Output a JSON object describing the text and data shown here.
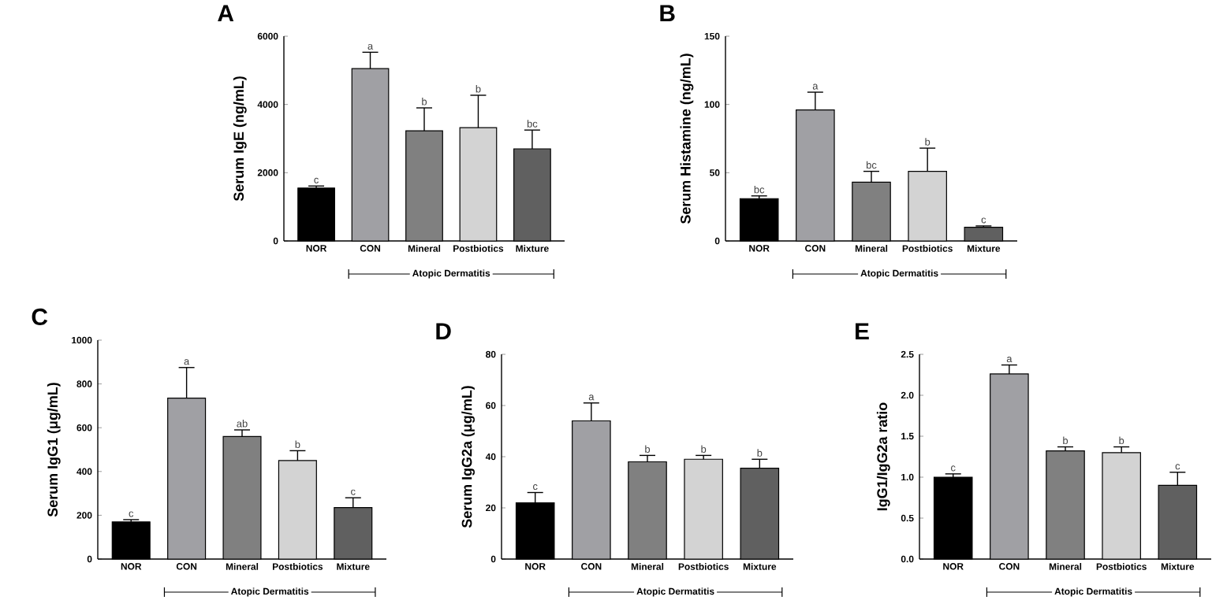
{
  "chart_data": [
    {
      "type": "bar",
      "title": "A",
      "ylabel": "Serum IgE (ng/mL)",
      "categories": [
        "NOR",
        "CON",
        "Mineral",
        "Postbiotics",
        "Mixture"
      ],
      "values": [
        1550,
        5050,
        3230,
        3320,
        2700
      ],
      "errors": [
        [
          1550,
          1610
        ],
        [
          5050,
          5530
        ],
        [
          3230,
          3900
        ],
        [
          3320,
          4270
        ],
        [
          2700,
          3250
        ]
      ],
      "colors": [
        "#000000",
        "#a0a0a4",
        "#808080",
        "#d3d3d3",
        "#606060"
      ],
      "ylim": [
        0,
        6000
      ],
      "yticks": [
        0,
        2000,
        4000,
        6000
      ],
      "grid": false,
      "annotations": [
        {
          "text": "c",
          "x": "NOR",
          "y": 1610
        },
        {
          "text": "a",
          "x": "CON",
          "y": 5530
        },
        {
          "text": "b",
          "x": "Mineral",
          "y": 3900
        },
        {
          "text": "b",
          "x": "Postbiotics",
          "y": 4270
        },
        {
          "text": "bc",
          "x": "Mixture",
          "y": 3250
        },
        "Atopic Dermatitis"
      ]
    },
    {
      "type": "bar",
      "title": "B",
      "ylabel": "Serum Histamine (ng/mL)",
      "categories": [
        "NOR",
        "CON",
        "Mineral",
        "Postbiotics",
        "Mixture"
      ],
      "values": [
        31,
        96,
        43,
        51,
        10
      ],
      "errors": [
        [
          31,
          33
        ],
        [
          96,
          109
        ],
        [
          43,
          51
        ],
        [
          51,
          68
        ],
        [
          10,
          11
        ]
      ],
      "colors": [
        "#000000",
        "#a0a0a4",
        "#808080",
        "#d3d3d3",
        "#606060"
      ],
      "ylim": [
        0,
        150
      ],
      "yticks": [
        0,
        50,
        100,
        150
      ],
      "grid": false,
      "annotations": [
        {
          "text": "bc",
          "x": "NOR",
          "y": 33
        },
        {
          "text": "a",
          "x": "CON",
          "y": 109
        },
        {
          "text": "bc",
          "x": "Mineral",
          "y": 51
        },
        {
          "text": "b",
          "x": "Postbiotics",
          "y": 68
        },
        {
          "text": "c",
          "x": "Mixture",
          "y": 11
        },
        "Atopic Dermatitis"
      ]
    },
    {
      "type": "bar",
      "title": "C",
      "ylabel": "Serum IgG1 (μg/mL)",
      "categories": [
        "NOR",
        "CON",
        "Mineral",
        "Postbiotics",
        "Mixture"
      ],
      "values": [
        170,
        735,
        560,
        450,
        235
      ],
      "errors": [
        [
          170,
          180
        ],
        [
          735,
          875
        ],
        [
          560,
          590
        ],
        [
          450,
          495
        ],
        [
          235,
          280
        ]
      ],
      "colors": [
        "#000000",
        "#a0a0a4",
        "#808080",
        "#d3d3d3",
        "#606060"
      ],
      "ylim": [
        0,
        1000
      ],
      "yticks": [
        0,
        200,
        400,
        600,
        800,
        1000
      ],
      "grid": false,
      "annotations": [
        {
          "text": "c",
          "x": "NOR",
          "y": 180
        },
        {
          "text": "a",
          "x": "CON",
          "y": 875
        },
        {
          "text": "ab",
          "x": "Mineral",
          "y": 590
        },
        {
          "text": "b",
          "x": "Postbiotics",
          "y": 495
        },
        {
          "text": "c",
          "x": "Mixture",
          "y": 280
        },
        "Atopic Dermatitis"
      ]
    },
    {
      "type": "bar",
      "title": "D",
      "ylabel": "Serum IgG2a (μg/mL)",
      "categories": [
        "NOR",
        "CON",
        "Mineral",
        "Postbiotics",
        "Mixture"
      ],
      "values": [
        22,
        54,
        38,
        39,
        35.5
      ],
      "errors": [
        [
          22,
          26
        ],
        [
          54,
          61
        ],
        [
          38,
          40.5
        ],
        [
          39,
          40.5
        ],
        [
          35.5,
          39
        ]
      ],
      "colors": [
        "#000000",
        "#a0a0a4",
        "#808080",
        "#d3d3d3",
        "#606060"
      ],
      "ylim": [
        0,
        80
      ],
      "yticks": [
        0,
        20,
        40,
        60,
        80
      ],
      "grid": false,
      "annotations": [
        {
          "text": "c",
          "x": "NOR",
          "y": 26
        },
        {
          "text": "a",
          "x": "CON",
          "y": 61
        },
        {
          "text": "b",
          "x": "Mineral",
          "y": 40.5
        },
        {
          "text": "b",
          "x": "Postbiotics",
          "y": 40.5
        },
        {
          "text": "b",
          "x": "Mixture",
          "y": 39
        },
        "Atopic Dermatitis"
      ]
    },
    {
      "type": "bar",
      "title": "E",
      "ylabel": "IgG1/IgG2a ratio",
      "categories": [
        "NOR",
        "CON",
        "Mineral",
        "Postbiotics",
        "Mixture"
      ],
      "values": [
        1.0,
        2.26,
        1.32,
        1.3,
        0.9
      ],
      "errors": [
        [
          1.0,
          1.04
        ],
        [
          2.26,
          2.37
        ],
        [
          1.32,
          1.37
        ],
        [
          1.3,
          1.37
        ],
        [
          0.9,
          1.06
        ]
      ],
      "colors": [
        "#000000",
        "#a0a0a4",
        "#808080",
        "#d3d3d3",
        "#606060"
      ],
      "ylim": [
        0,
        2.5
      ],
      "yticks": [
        {
          "value": 0,
          "label": "0.0"
        },
        {
          "value": 0.5,
          "label": "0.5"
        },
        {
          "value": 1,
          "label": "1.0"
        },
        {
          "value": 1.5,
          "label": "1.5"
        },
        {
          "value": 2,
          "label": "2.0"
        },
        {
          "value": 2.5,
          "label": "2.5"
        }
      ],
      "grid": false,
      "annotations": [
        {
          "text": "c",
          "x": "NOR",
          "y": 1.04
        },
        {
          "text": "a",
          "x": "CON",
          "y": 2.37
        },
        {
          "text": "b",
          "x": "Mineral",
          "y": 1.37
        },
        {
          "text": "b",
          "x": "Postbiotics",
          "y": 1.37
        },
        {
          "text": "c",
          "x": "Mixture",
          "y": 1.06
        },
        "Atopic Dermatitis"
      ]
    }
  ]
}
